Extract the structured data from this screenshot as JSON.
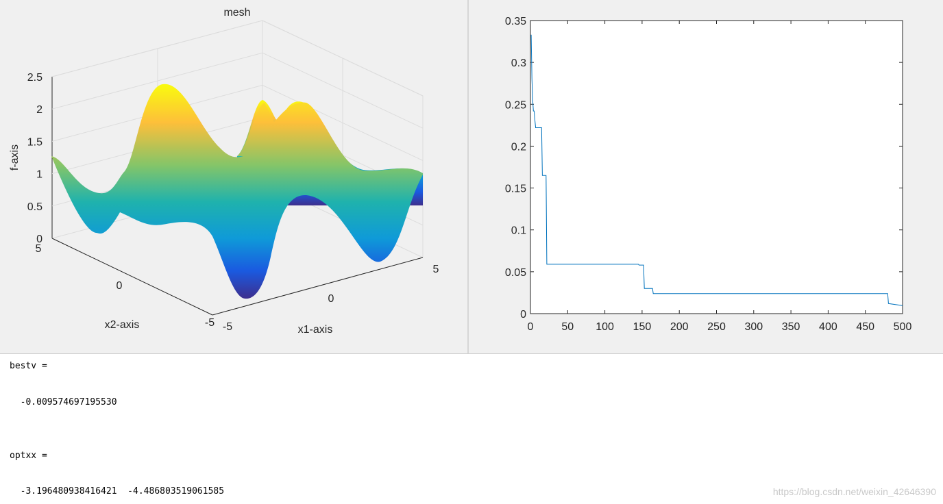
{
  "chart_data": [
    {
      "type": "surface",
      "title": "mesh",
      "xlabel": "x1-axis",
      "ylabel": "x2-axis",
      "zlabel": "f-axis",
      "xlim": [
        -5,
        5
      ],
      "ylim": [
        -5,
        5
      ],
      "zlim": [
        0,
        2.5
      ],
      "xticks": [
        "-5",
        "0",
        "5"
      ],
      "yticks": [
        "-5",
        "0",
        "5"
      ],
      "zticks": [
        "0",
        "0.5",
        "1",
        "1.5",
        "2",
        "2.5"
      ],
      "colormap": "parula",
      "grid": true
    },
    {
      "type": "line",
      "title": "",
      "xlabel": "",
      "ylabel": "",
      "xlim": [
        0,
        500
      ],
      "ylim": [
        0,
        0.35
      ],
      "xticks": [
        "0",
        "50",
        "100",
        "150",
        "200",
        "250",
        "300",
        "350",
        "400",
        "450",
        "500"
      ],
      "yticks": [
        "0",
        "0.05",
        "0.1",
        "0.15",
        "0.2",
        "0.25",
        "0.3",
        "0.35"
      ],
      "color": "#0072bd",
      "series": [
        {
          "x": [
            1,
            2,
            3,
            4,
            5,
            6,
            7,
            8,
            15,
            16,
            21,
            22,
            145,
            146,
            152,
            153,
            164,
            165,
            480,
            481,
            500
          ],
          "y": [
            0.333,
            0.28,
            0.255,
            0.242,
            0.242,
            0.231,
            0.222,
            0.222,
            0.222,
            0.165,
            0.165,
            0.059,
            0.059,
            0.058,
            0.058,
            0.03,
            0.03,
            0.024,
            0.024,
            0.012,
            0.0096
          ]
        }
      ]
    }
  ],
  "console": {
    "bestv_label": "bestv =",
    "bestv_value": "  -0.009574697195530",
    "optxx_label": "optxx =",
    "optxx_value": "  -3.196480938416421  -4.486803519061585"
  },
  "watermark": "https://blog.csdn.net/weixin_42646390"
}
